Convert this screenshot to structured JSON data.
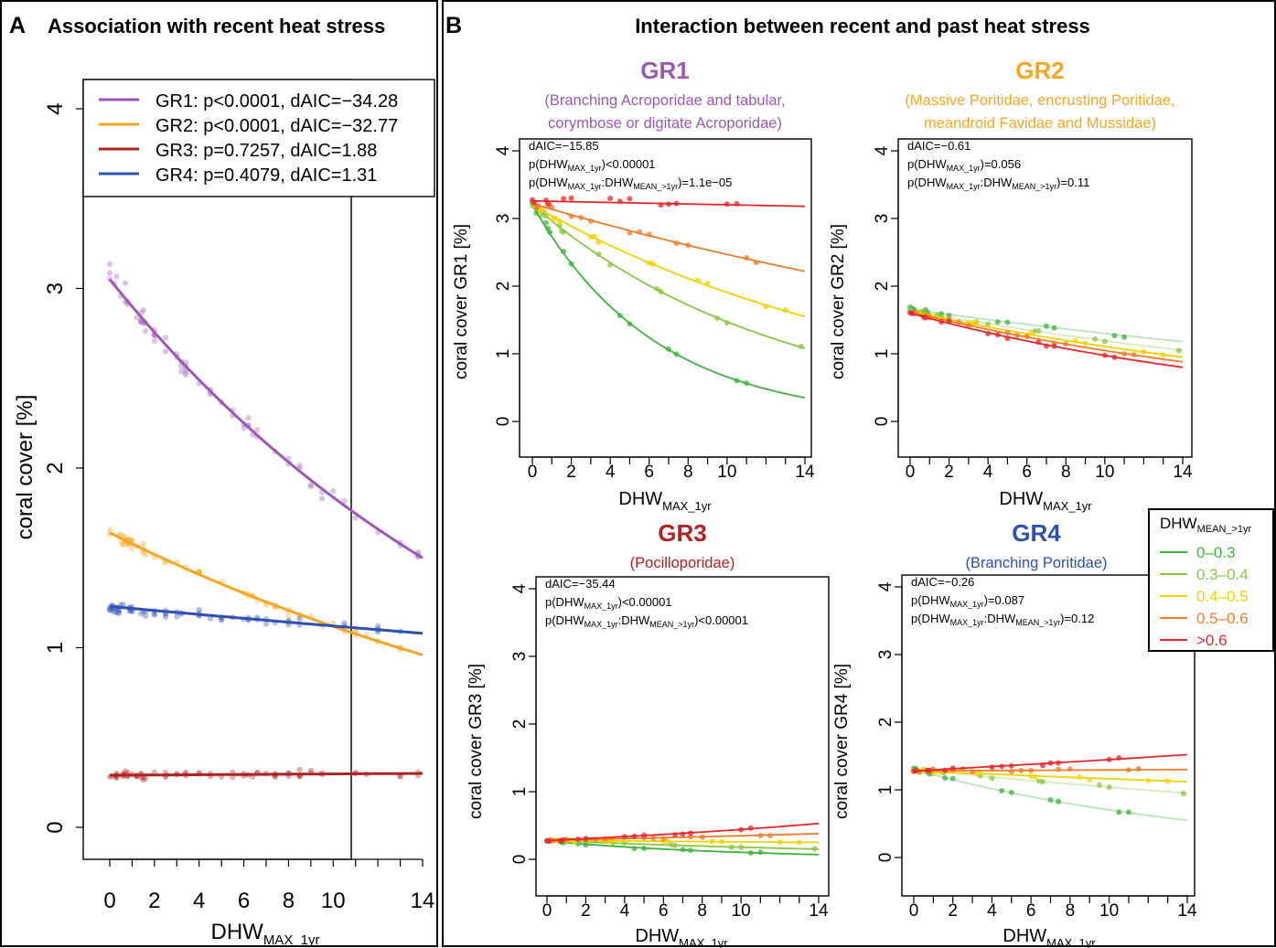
{
  "panelA": {
    "letter": "A",
    "title": "Association with recent heat stress"
  },
  "panelB": {
    "letter": "B",
    "title": "Interaction between recent and past heat stress"
  },
  "legendB": {
    "title_main": "DHW",
    "title_sub": "MEAN_>1yr",
    "items": [
      {
        "label": "0–0.3",
        "color": "#3db33d"
      },
      {
        "label": "0.3–0.4",
        "color": "#8cc63f"
      },
      {
        "label": "0.4–0.5",
        "color": "#f2d300"
      },
      {
        "label": "0.5–0.6",
        "color": "#f07c26"
      },
      {
        "label": ">0.6",
        "color": "#e8262b"
      }
    ]
  },
  "chart_data": [
    {
      "id": "A",
      "type": "scatter",
      "ylabel": "coral cover [%]",
      "xlabel_main": "DHW",
      "xlabel_sub": "MAX_1yr",
      "x_ticks": [
        0,
        2,
        4,
        6,
        8,
        10,
        14
      ],
      "y_ticks": [
        0,
        1,
        2,
        3,
        4
      ],
      "xlim": [
        0,
        14
      ],
      "ylim": [
        0,
        4
      ],
      "legend": [
        {
          "label": "GR1: p<0.0001, dAIC=−34.28",
          "color": "#9b59b6"
        },
        {
          "label": "GR2: p<0.0001, dAIC=−32.77",
          "color": "#f5a623"
        },
        {
          "label": "GR3: p=0.7257, dAIC=1.88",
          "color": "#b22222"
        },
        {
          "label": "GR4: p=0.4079, dAIC=1.31",
          "color": "#2e4fb5"
        }
      ],
      "series": [
        {
          "name": "GR1",
          "color": "#9b59b6",
          "y0": 3.05,
          "y14": 1.5
        },
        {
          "name": "GR2",
          "color": "#f5a623",
          "y0": 1.64,
          "y14": 0.96
        },
        {
          "name": "GR3",
          "color": "#b22222",
          "y0": 0.29,
          "y14": 0.3
        },
        {
          "name": "GR4",
          "color": "#2e4fb5",
          "y0": 1.23,
          "y14": 1.08
        }
      ]
    },
    {
      "id": "GR1",
      "type": "scatter",
      "title": "GR1",
      "title_color": "#9b59b6",
      "subtitle": [
        "(Branching Acroporidae and tabular,",
        "corymbose or digitate Acroporidae)"
      ],
      "ylabel": "coral cover GR1 [%]",
      "xlabel_main": "DHW",
      "xlabel_sub": "MAX_1yr",
      "x_ticks": [
        0,
        2,
        4,
        6,
        8,
        10,
        14
      ],
      "y_ticks": [
        0,
        1,
        2,
        3,
        4
      ],
      "xlim": [
        0,
        14
      ],
      "ylim": [
        0,
        4
      ],
      "annotations": {
        "daic": "dAIC=−15.85",
        "p1": "<0.00001",
        "p2": "=1.1e−05"
      },
      "series": [
        {
          "name": "0–0.3",
          "color": "#3db33d",
          "y0": 3.2,
          "y14": 0.35
        },
        {
          "name": "0.3–0.4",
          "color": "#8cc63f",
          "y0": 3.2,
          "y14": 1.08
        },
        {
          "name": "0.4–0.5",
          "color": "#f2d300",
          "y0": 3.2,
          "y14": 1.55
        },
        {
          "name": "0.5–0.6",
          "color": "#f07c26",
          "y0": 3.22,
          "y14": 2.22
        },
        {
          "name": ">0.6",
          "color": "#e8262b",
          "y0": 3.26,
          "y14": 3.18
        }
      ]
    },
    {
      "id": "GR2",
      "type": "scatter",
      "title": "GR2",
      "title_color": "#f5a623",
      "subtitle": [
        "(Massive Poritidae, encrusting Poritidae,",
        "meandroid Favidae and Mussidae)"
      ],
      "ylabel": "coral cover GR2 [%]",
      "xlabel_main": "DHW",
      "xlabel_sub": "MAX_1yr",
      "x_ticks": [
        0,
        2,
        4,
        6,
        8,
        10,
        14
      ],
      "y_ticks": [
        0,
        1,
        2,
        3,
        4
      ],
      "xlim": [
        0,
        14
      ],
      "ylim": [
        0,
        4
      ],
      "annotations": {
        "daic": "dAIC=−0.61",
        "p1": "=0.056",
        "p2": "=0.11"
      },
      "series": [
        {
          "name": "0–0.3",
          "color": "#3db33d",
          "y0": 1.66,
          "y14": 1.18
        },
        {
          "name": "0.3–0.4",
          "color": "#8cc63f",
          "y0": 1.64,
          "y14": 1.05
        },
        {
          "name": "0.4–0.5",
          "color": "#f2d300",
          "y0": 1.63,
          "y14": 0.95
        },
        {
          "name": "0.5–0.6",
          "color": "#f07c26",
          "y0": 1.62,
          "y14": 0.88
        },
        {
          "name": ">0.6",
          "color": "#e8262b",
          "y0": 1.6,
          "y14": 0.8
        }
      ]
    },
    {
      "id": "GR3",
      "type": "scatter",
      "title": "GR3",
      "title_color": "#b22222",
      "subtitle": [
        "(Pocilloporidae)"
      ],
      "ylabel": "coral cover GR3 [%]",
      "xlabel_main": "DHW",
      "xlabel_sub": "MAX_1yr",
      "x_ticks": [
        0,
        2,
        4,
        6,
        8,
        10,
        14
      ],
      "y_ticks": [
        0,
        1,
        2,
        3,
        4
      ],
      "xlim": [
        0,
        14
      ],
      "ylim": [
        0,
        4
      ],
      "annotations": {
        "daic": "dAIC=−35.44",
        "p1": "<0.00001",
        "p2": "<0.00001"
      },
      "series": [
        {
          "name": "0–0.3",
          "color": "#3db33d",
          "y0": 0.27,
          "y14": 0.07
        },
        {
          "name": "0.3–0.4",
          "color": "#8cc63f",
          "y0": 0.28,
          "y14": 0.15
        },
        {
          "name": "0.4–0.5",
          "color": "#f2d300",
          "y0": 0.28,
          "y14": 0.25
        },
        {
          "name": "0.5–0.6",
          "color": "#f07c26",
          "y0": 0.28,
          "y14": 0.38
        },
        {
          "name": ">0.6",
          "color": "#e8262b",
          "y0": 0.28,
          "y14": 0.53
        }
      ]
    },
    {
      "id": "GR4",
      "type": "scatter",
      "title": "GR4",
      "title_color": "#2e4fb5",
      "subtitle": [
        "(Branching Poritidae)"
      ],
      "ylabel": "coral cover GR4 [%]",
      "xlabel_main": "DHW",
      "xlabel_sub": "MAX_1yr",
      "x_ticks": [
        0,
        2,
        4,
        6,
        8,
        10,
        14
      ],
      "y_ticks": [
        0,
        1,
        2,
        3,
        4
      ],
      "xlim": [
        0,
        14
      ],
      "ylim": [
        0,
        4
      ],
      "annotations": {
        "daic": "dAIC=−0.26",
        "p1": "=0.087",
        "p2": "=0.12"
      },
      "series": [
        {
          "name": "0–0.3",
          "color": "#3db33d",
          "y0": 1.3,
          "y14": 0.55
        },
        {
          "name": "0.3–0.4",
          "color": "#8cc63f",
          "y0": 1.3,
          "y14": 0.95
        },
        {
          "name": "0.4–0.5",
          "color": "#f2d300",
          "y0": 1.28,
          "y14": 1.12
        },
        {
          "name": "0.5–0.6",
          "color": "#f07c26",
          "y0": 1.28,
          "y14": 1.3
        },
        {
          "name": ">0.6",
          "color": "#e8262b",
          "y0": 1.28,
          "y14": 1.52
        }
      ]
    }
  ]
}
